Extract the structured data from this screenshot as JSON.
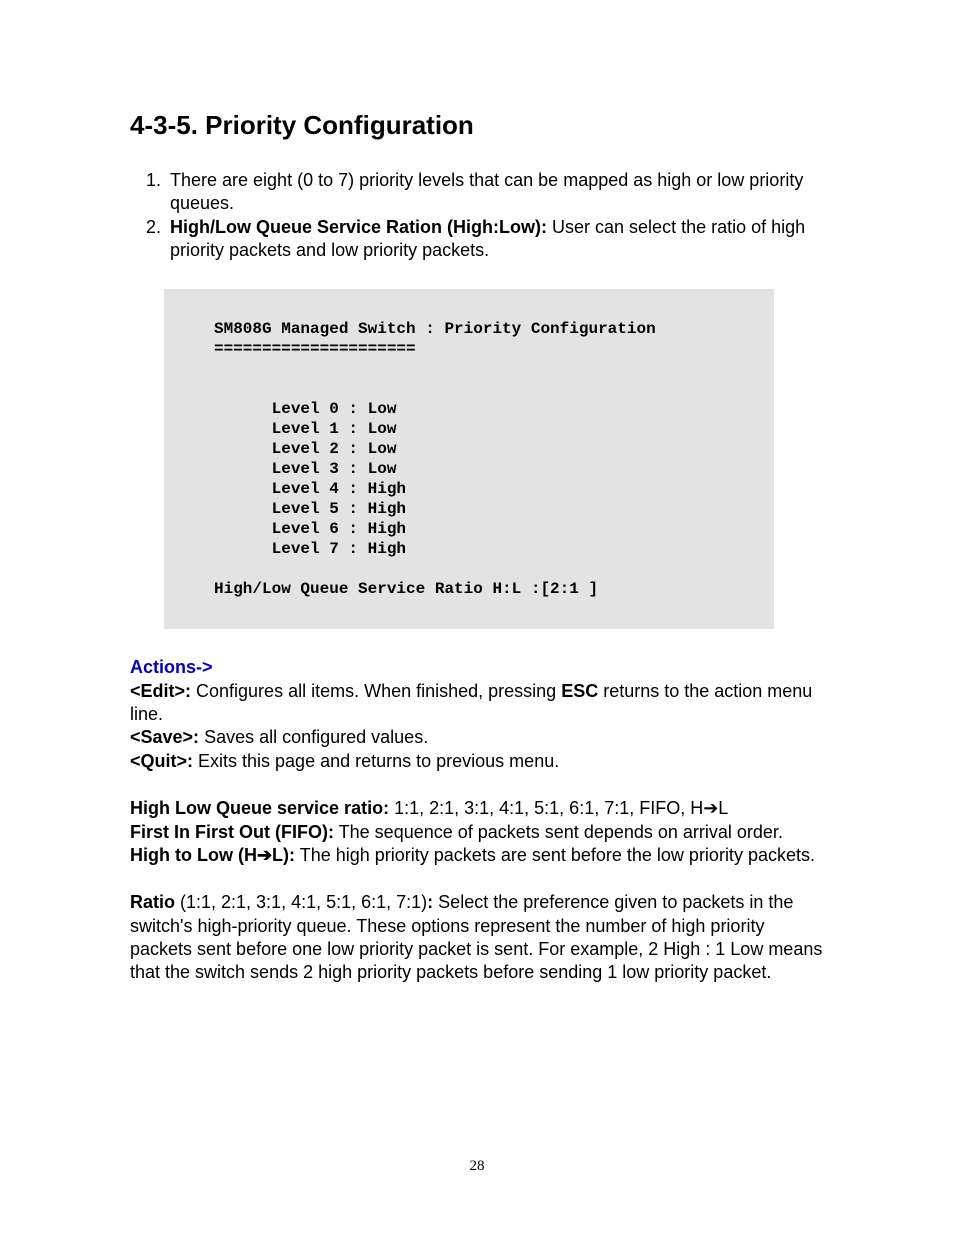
{
  "heading": "4-3-5. Priority Configuration",
  "list": {
    "item1": "There are eight (0 to 7) priority levels that can be mapped as high or low priority queues.",
    "item2_bold": "High/Low Queue Service Ration (High:Low):",
    "item2_rest": " User can select the ratio of high priority packets and low priority packets."
  },
  "terminal": {
    "title": "SM808G Managed Switch : Priority Configuration",
    "divider": "=====================",
    "levels": [
      "      Level 0 : Low",
      "      Level 1 : Low",
      "      Level 2 : Low",
      "      Level 3 : Low",
      "      Level 4 : High",
      "      Level 5 : High",
      "      Level 6 : High",
      "      Level 7 : High"
    ],
    "ratio_line": "High/Low Queue Service Ratio H:L :[2:1 ]"
  },
  "actions_label": "Actions->",
  "actions": {
    "edit_label": "<Edit>:",
    "edit_text1": " Configures all items. When finished, pressing ",
    "edit_esc": "ESC",
    "edit_text2": " returns to the action menu line.",
    "save_label": "<Save>:",
    "save_text": " Saves all configured values.",
    "quit_label": "<Quit>:",
    "quit_text": " Exits this page and returns to previous menu."
  },
  "ratio_block": {
    "hl_label": "High Low Queue service ratio:",
    "hl_text": " 1:1, 2:1, 3:1, 4:1, 5:1, 6:1, 7:1, FIFO, H➔L",
    "fifo_label": "First In First Out (FIFO):",
    "fifo_text": " The sequence of packets sent depends on arrival order.",
    "htl_label": "High to Low (H➔L):",
    "htl_text": " The high priority packets are sent before the low priority packets."
  },
  "ratio_para": {
    "label": "Ratio",
    "paren": " (1:1, 2:1, 3:1, 4:1, 5:1, 6:1, 7:1)",
    "colon": ":",
    "text": " Select the preference given to packets in the switch's high-priority queue. These options represent the number of high priority packets sent before one low priority packet is sent. For example, 2 High : 1 Low means that the switch sends 2 high priority packets before sending 1 low priority packet."
  },
  "page_number": "28",
  "colors": {
    "link": "#0000cc",
    "terminal_bg": "#e3e3e3",
    "page_bg": "#ffffff",
    "text": "#000000"
  }
}
